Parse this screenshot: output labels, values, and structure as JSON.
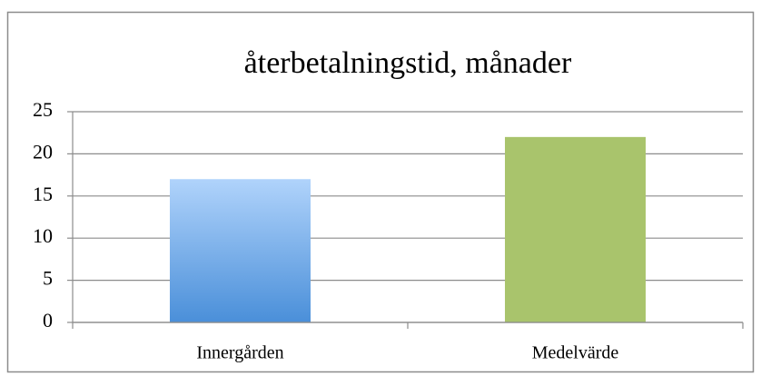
{
  "chart_data": {
    "type": "bar",
    "title": "återbetalningstid, månader",
    "categories": [
      "Innergården",
      "Medelvärde"
    ],
    "values": [
      17,
      22
    ],
    "colors": [
      [
        "#b0d3fb",
        "#4a8fd9"
      ],
      "#a9c46c"
    ],
    "ylim": [
      0,
      25
    ],
    "yticks": [
      0,
      5,
      10,
      15,
      20,
      25
    ],
    "grid": true
  }
}
